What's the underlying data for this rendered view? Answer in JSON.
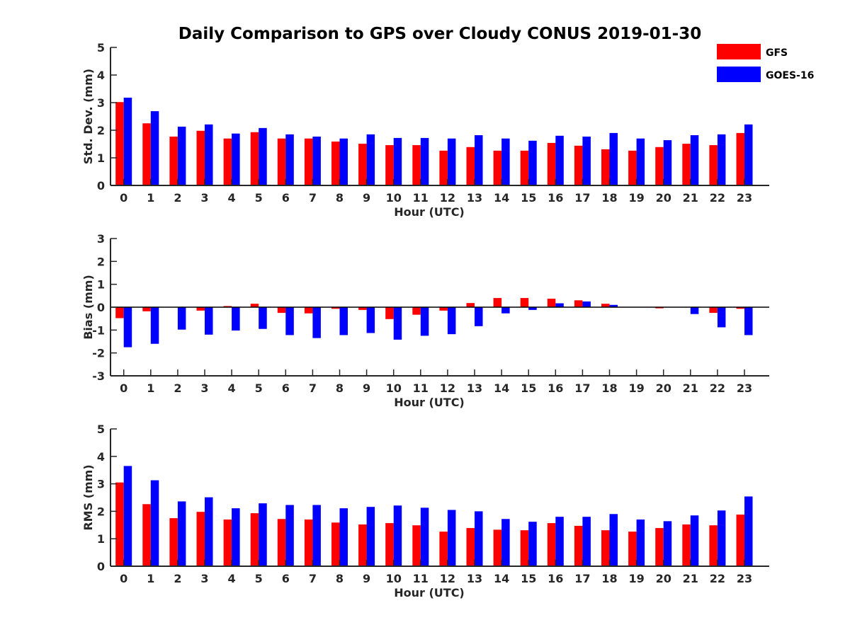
{
  "title": "Daily Comparison to GPS over Cloudy CONUS 2019-01-30",
  "legend": {
    "placement": "top-right",
    "entries": [
      {
        "name": "GFS",
        "color": "#ff0000"
      },
      {
        "name": "GOES-16",
        "color": "#0000ff"
      }
    ]
  },
  "chart_data": [
    {
      "type": "bar",
      "xlabel": "Hour (UTC)",
      "ylabel": "Std. Dev. (mm)",
      "ylim": [
        0,
        5
      ],
      "yticks": [
        0,
        1,
        2,
        3,
        4,
        5
      ],
      "categories": [
        "0",
        "1",
        "2",
        "3",
        "4",
        "5",
        "6",
        "7",
        "8",
        "9",
        "10",
        "11",
        "12",
        "13",
        "14",
        "15",
        "16",
        "17",
        "18",
        "19",
        "20",
        "21",
        "22",
        "23"
      ],
      "series": [
        {
          "name": "GFS",
          "color": "#ff0000",
          "values": [
            3.02,
            2.25,
            1.77,
            1.98,
            1.7,
            1.93,
            1.7,
            1.7,
            1.59,
            1.51,
            1.46,
            1.46,
            1.26,
            1.39,
            1.26,
            1.26,
            1.54,
            1.44,
            1.31,
            1.26,
            1.39,
            1.51,
            1.46,
            1.9
          ]
        },
        {
          "name": "GOES-16",
          "color": "#0000ff",
          "values": [
            3.18,
            2.69,
            2.13,
            2.21,
            1.88,
            2.08,
            1.85,
            1.77,
            1.7,
            1.85,
            1.72,
            1.72,
            1.7,
            1.82,
            1.7,
            1.62,
            1.8,
            1.77,
            1.9,
            1.7,
            1.64,
            1.82,
            1.85,
            2.21
          ]
        }
      ]
    },
    {
      "type": "bar",
      "xlabel": "Hour (UTC)",
      "ylabel": "Bias (mm)",
      "ylim": [
        -3,
        3
      ],
      "yticks": [
        -3,
        -2,
        -1,
        0,
        1,
        2,
        3
      ],
      "categories": [
        "0",
        "1",
        "2",
        "3",
        "4",
        "5",
        "6",
        "7",
        "8",
        "9",
        "10",
        "11",
        "12",
        "13",
        "14",
        "15",
        "16",
        "17",
        "18",
        "19",
        "20",
        "21",
        "22",
        "23"
      ],
      "series": [
        {
          "name": "GFS",
          "color": "#ff0000",
          "values": [
            -0.48,
            -0.18,
            0.0,
            -0.15,
            0.05,
            0.15,
            -0.25,
            -0.27,
            -0.07,
            -0.12,
            -0.52,
            -0.33,
            -0.15,
            0.18,
            0.4,
            0.4,
            0.37,
            0.3,
            0.15,
            0.0,
            -0.05,
            0.0,
            -0.25,
            -0.07
          ]
        },
        {
          "name": "GOES-16",
          "color": "#0000ff",
          "values": [
            -1.75,
            -1.6,
            -0.98,
            -1.2,
            -1.02,
            -0.95,
            -1.22,
            -1.35,
            -1.22,
            -1.13,
            -1.42,
            -1.25,
            -1.18,
            -0.83,
            -0.27,
            -0.12,
            0.17,
            0.25,
            0.1,
            0.0,
            0.0,
            -0.3,
            -0.88,
            -1.22
          ]
        }
      ]
    },
    {
      "type": "bar",
      "xlabel": "Hour (UTC)",
      "ylabel": "RMS (mm)",
      "ylim": [
        0,
        5
      ],
      "yticks": [
        0,
        1,
        2,
        3,
        4,
        5
      ],
      "categories": [
        "0",
        "1",
        "2",
        "3",
        "4",
        "5",
        "6",
        "7",
        "8",
        "9",
        "10",
        "11",
        "12",
        "13",
        "14",
        "15",
        "16",
        "17",
        "18",
        "19",
        "20",
        "21",
        "22",
        "23"
      ],
      "series": [
        {
          "name": "GFS",
          "color": "#ff0000",
          "values": [
            3.05,
            2.26,
            1.75,
            1.98,
            1.7,
            1.93,
            1.72,
            1.7,
            1.59,
            1.52,
            1.57,
            1.49,
            1.26,
            1.39,
            1.33,
            1.31,
            1.57,
            1.47,
            1.31,
            1.26,
            1.39,
            1.52,
            1.49,
            1.88
          ]
        },
        {
          "name": "GOES-16",
          "color": "#0000ff",
          "values": [
            3.65,
            3.13,
            2.36,
            2.51,
            2.11,
            2.29,
            2.23,
            2.23,
            2.11,
            2.16,
            2.21,
            2.13,
            2.05,
            2.0,
            1.72,
            1.62,
            1.8,
            1.8,
            1.9,
            1.7,
            1.64,
            1.85,
            2.03,
            2.54
          ]
        }
      ]
    }
  ]
}
